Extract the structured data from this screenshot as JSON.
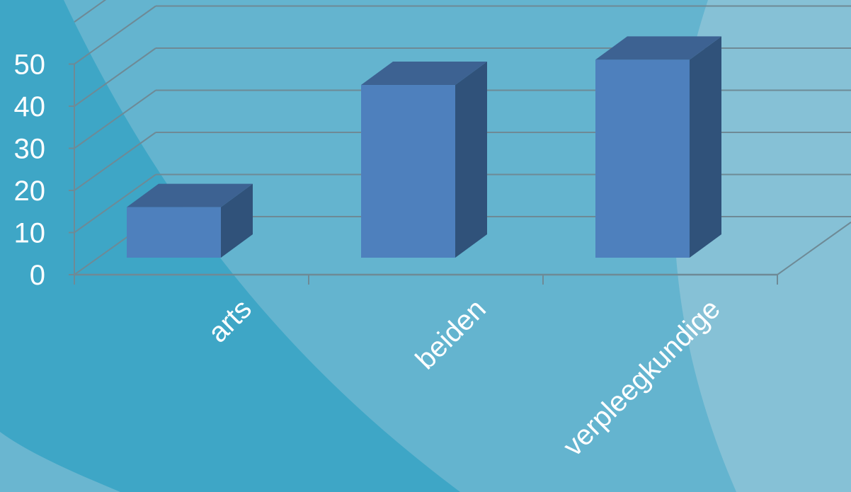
{
  "chart_data": {
    "type": "bar",
    "style": "3d-column",
    "categories": [
      "arts",
      "beiden",
      "verpleegkundige"
    ],
    "values": [
      12,
      41,
      47
    ],
    "ylim": [
      0,
      50
    ],
    "yticks": [
      0,
      10,
      20,
      30,
      40,
      50
    ],
    "grid": true,
    "legend": "none",
    "title": "",
    "xlabel": "",
    "ylabel": ""
  },
  "colors": {
    "background": "#64b4cf",
    "swoosh_dark": "#3ea6c6",
    "swoosh_light": "#86c1d6",
    "grid": "#6e8a96",
    "bar_front": "#4e80bd",
    "bar_side": "#30527a",
    "bar_top": "#3d6292",
    "text": "#ffffff"
  }
}
